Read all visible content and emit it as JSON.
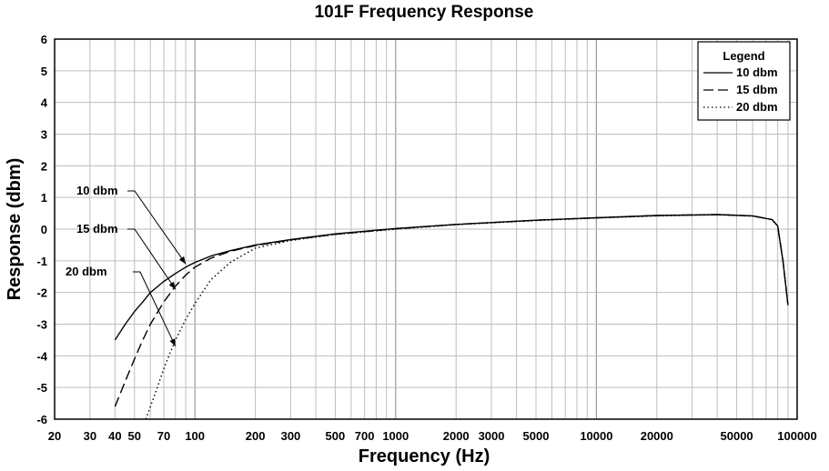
{
  "chart_data": {
    "type": "line",
    "title": "101F Frequency Response",
    "xlabel": "Frequency (Hz)",
    "ylabel": "Response (dbm)",
    "x_scale": "log",
    "xlim": [
      20,
      100000
    ],
    "ylim": [
      -6,
      6
    ],
    "grid": true,
    "x_ticks": [
      20,
      30,
      40,
      50,
      70,
      100,
      200,
      300,
      500,
      700,
      1000,
      2000,
      3000,
      5000,
      10000,
      20000,
      50000,
      100000
    ],
    "x_tick_labels": [
      "20",
      "30",
      "40",
      "50",
      "70",
      "100",
      "200",
      "300",
      "500",
      "700",
      "1000",
      "2000",
      "3000",
      "5000",
      "10000",
      "20000",
      "50000",
      "100000"
    ],
    "y_ticks": [
      -6,
      -5,
      -4,
      -3,
      -2,
      -1,
      0,
      1,
      2,
      3,
      4,
      5,
      6
    ],
    "y_tick_labels": [
      "-6",
      "-5",
      "-4",
      "-3",
      "-2",
      "-1",
      "0",
      "1",
      "2",
      "3",
      "4",
      "5",
      "6"
    ],
    "legend": {
      "title": "Legend",
      "position": "top-right"
    },
    "series": [
      {
        "name": "10 dbm",
        "style": "solid",
        "x": [
          40,
          45,
          50,
          55,
          60,
          70,
          80,
          90,
          100,
          120,
          150,
          200,
          300,
          500,
          1000,
          2000,
          5000,
          10000,
          20000,
          40000,
          60000,
          75000,
          80000,
          85000,
          90000
        ],
        "y": [
          -3.5,
          -3.0,
          -2.6,
          -2.3,
          -2.0,
          -1.65,
          -1.4,
          -1.2,
          -1.05,
          -0.85,
          -0.68,
          -0.5,
          -0.33,
          -0.15,
          0.02,
          0.15,
          0.28,
          0.36,
          0.43,
          0.46,
          0.42,
          0.3,
          0.1,
          -1.0,
          -2.4
        ]
      },
      {
        "name": "15 dbm",
        "style": "dashed",
        "x": [
          40,
          45,
          50,
          55,
          60,
          70,
          80,
          90,
          100,
          120,
          150,
          200,
          300,
          500,
          1000,
          2000,
          5000,
          10000,
          20000,
          40000,
          60000,
          75000,
          80000,
          85000,
          90000
        ],
        "y": [
          -5.6,
          -4.8,
          -4.1,
          -3.5,
          -3.0,
          -2.3,
          -1.8,
          -1.45,
          -1.2,
          -0.92,
          -0.7,
          -0.52,
          -0.34,
          -0.16,
          0.01,
          0.15,
          0.28,
          0.36,
          0.43,
          0.46,
          0.42,
          0.3,
          0.1,
          -1.0,
          -2.4
        ]
      },
      {
        "name": "20 dbm",
        "style": "dotted",
        "x": [
          57,
          60,
          65,
          70,
          80,
          90,
          100,
          120,
          150,
          200,
          300,
          500,
          1000,
          2000,
          5000,
          10000,
          20000,
          40000,
          60000,
          75000,
          80000,
          85000,
          90000
        ],
        "y": [
          -6.0,
          -5.6,
          -5.0,
          -4.4,
          -3.5,
          -2.85,
          -2.35,
          -1.6,
          -1.05,
          -0.6,
          -0.36,
          -0.17,
          0.0,
          0.14,
          0.27,
          0.35,
          0.42,
          0.45,
          0.41,
          0.3,
          0.1,
          -1.0,
          -2.4
        ]
      }
    ],
    "annotations": [
      {
        "text": "10 dbm",
        "target_x": 90,
        "target_y": -1.1
      },
      {
        "text": "15 dbm",
        "target_x": 80,
        "target_y": -1.9
      },
      {
        "text": "20 dbm",
        "target_x": 80,
        "target_y": -3.7
      }
    ]
  }
}
